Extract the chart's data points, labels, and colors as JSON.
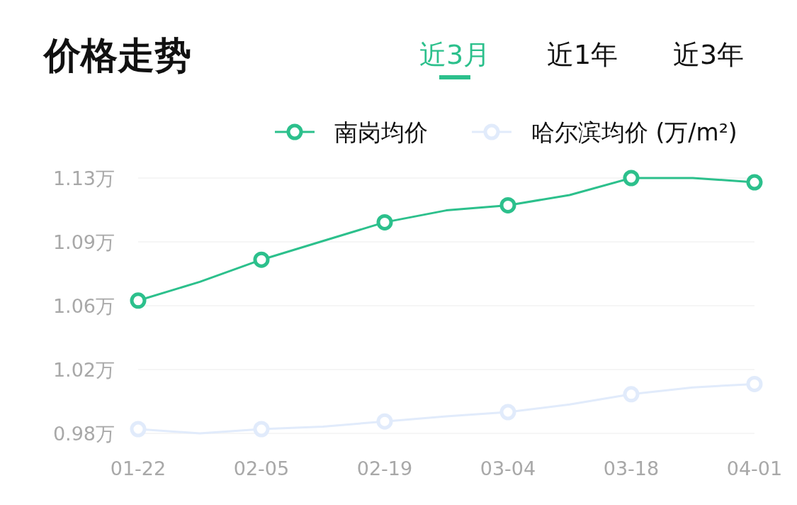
{
  "chart_data": {
    "type": "line",
    "title": "价格走势",
    "annotations": [
      "近3月",
      "近1年",
      "近3年"
    ],
    "categories": [
      "01-22",
      null,
      "02-05",
      null,
      "02-19",
      null,
      "03-04",
      null,
      "03-18",
      null,
      "04-01"
    ],
    "series": [
      {
        "name": "南岗均价",
        "color": "#2cc08c",
        "values": [
          1.058,
          1.069,
          1.082,
          1.093,
          1.104,
          1.111,
          1.114,
          1.12,
          1.13,
          1.13,
          1.1275
        ]
      },
      {
        "name": "哈尔滨均价 (万/m²)",
        "color": "#e1ebfb",
        "values": [
          0.9825,
          0.98,
          0.9825,
          0.984,
          0.987,
          0.99,
          0.9925,
          0.997,
          1.003,
          1.007,
          1.009
        ]
      }
    ],
    "ylim": [
      0.98,
      1.13
    ],
    "yticks": [
      {
        "value": 0.98,
        "label": "0.98万"
      },
      {
        "value": 1.0175,
        "label": "1.02万"
      },
      {
        "value": 1.055,
        "label": "1.06万"
      },
      {
        "value": 1.0925,
        "label": "1.09万"
      },
      {
        "value": 1.13,
        "label": "1.13万"
      }
    ],
    "grid": "y",
    "legend": "top right",
    "marker": "circle",
    "line_style": "solid"
  }
}
